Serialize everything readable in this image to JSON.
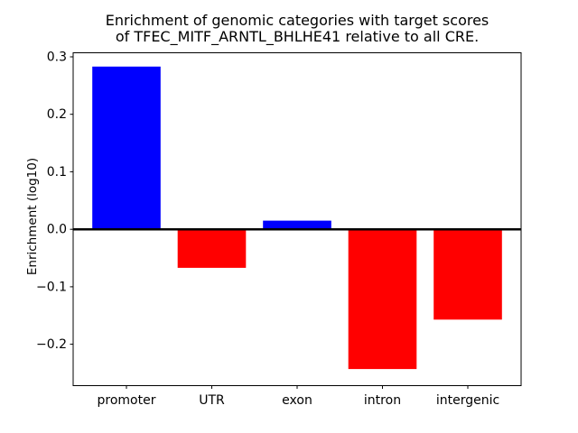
{
  "figure": {
    "background": "#ffffff"
  },
  "chart_data": {
    "type": "bar",
    "title": "Enrichment of genomic categories with target scores\nof TFEC_MITF_ARNTL_BHLHE41 relative to all CRE.",
    "title_lines": [
      "Enrichment of genomic categories with target scores",
      "of TFEC_MITF_ARNTL_BHLHE41 relative to all CRE."
    ],
    "xlabel": "",
    "ylabel": "Enrichment (log10)",
    "categories": [
      "promoter",
      "UTR",
      "exon",
      "intron",
      "intergenic"
    ],
    "values": [
      0.283,
      -0.067,
      0.015,
      -0.243,
      -0.157
    ],
    "bar_colors": [
      "#0000ff",
      "#ff0000",
      "#0000ff",
      "#ff0000",
      "#ff0000"
    ],
    "positive_color": "#0000ff",
    "negative_color": "#ff0000",
    "ylim": [
      -0.272,
      0.307
    ],
    "yticks": [
      0.3,
      0.2,
      0.1,
      0.0,
      -0.1,
      -0.2
    ],
    "ytick_labels": [
      "0.3",
      "0.2",
      "0.1",
      "0.0",
      "−0.1",
      "−0.2"
    ],
    "zero_line": true,
    "grid": false,
    "axis_color": "#000000",
    "text_color": "#000000"
  }
}
